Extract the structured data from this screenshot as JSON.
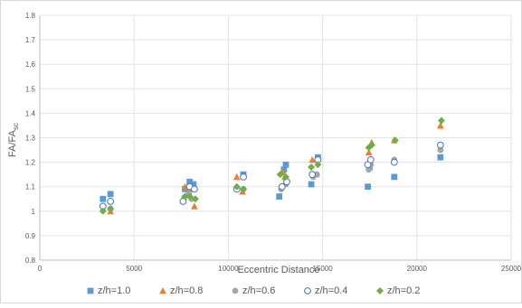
{
  "chart_data": {
    "type": "scatter",
    "xlabel": "Eccentric Distance",
    "ylabel": "FA/FA",
    "ylabel_sub": "sc",
    "xlim": [
      0,
      25000
    ],
    "ylim": [
      0.8,
      1.8
    ],
    "xticks": [
      "0",
      "5000",
      "10000",
      "15000",
      "20000",
      "25000"
    ],
    "yticks": [
      "0.8",
      "0.9",
      "1",
      "1.1",
      "1.2",
      "1.3",
      "1.4",
      "1.5",
      "1.6",
      "1.7",
      "1.8"
    ],
    "grid": true,
    "legend_position": "bottom",
    "series": [
      {
        "name": "z/h=1.0",
        "marker": "square",
        "color": "#5b9bd5",
        "points": [
          [
            3350,
            1.05
          ],
          [
            3750,
            1.07
          ],
          [
            7700,
            1.09
          ],
          [
            7950,
            1.12
          ],
          [
            8150,
            1.11
          ],
          [
            10800,
            1.15
          ],
          [
            12700,
            1.06
          ],
          [
            12950,
            1.17
          ],
          [
            13050,
            1.19
          ],
          [
            14400,
            1.11
          ],
          [
            14750,
            1.22
          ],
          [
            17400,
            1.1
          ],
          [
            17500,
            1.18
          ],
          [
            18800,
            1.14
          ],
          [
            21250,
            1.22
          ]
        ]
      },
      {
        "name": "z/h=0.8",
        "marker": "triangle",
        "color": "#ed7d31",
        "points": [
          [
            3350,
            1.01
          ],
          [
            3750,
            1.0
          ],
          [
            7700,
            1.1
          ],
          [
            7950,
            1.09
          ],
          [
            8200,
            1.02
          ],
          [
            10450,
            1.14
          ],
          [
            10750,
            1.08
          ],
          [
            12900,
            1.16
          ],
          [
            13000,
            1.14
          ],
          [
            14450,
            1.21
          ],
          [
            14650,
            1.15
          ],
          [
            17450,
            1.24
          ],
          [
            17600,
            1.28
          ],
          [
            18800,
            1.29
          ],
          [
            21250,
            1.35
          ]
        ]
      },
      {
        "name": "z/h=0.6",
        "marker": "circle",
        "color": "#a5a5a5",
        "points": [
          [
            3350,
            1.02
          ],
          [
            3750,
            1.01
          ],
          [
            7650,
            1.05
          ],
          [
            7900,
            1.07
          ],
          [
            8050,
            1.05
          ],
          [
            10450,
            1.09
          ],
          [
            10800,
            1.09
          ],
          [
            12800,
            1.09
          ],
          [
            13050,
            1.11
          ],
          [
            14500,
            1.14
          ],
          [
            14700,
            1.15
          ],
          [
            17450,
            1.17
          ],
          [
            17550,
            1.19
          ],
          [
            18800,
            1.21
          ],
          [
            21250,
            1.25
          ]
        ]
      },
      {
        "name": "z/h=0.4",
        "marker": "circle-open",
        "color": "#4472c4",
        "points": [
          [
            3350,
            1.02
          ],
          [
            3750,
            1.04
          ],
          [
            7600,
            1.04
          ],
          [
            7950,
            1.1
          ],
          [
            8200,
            1.09
          ],
          [
            10450,
            1.09
          ],
          [
            10800,
            1.14
          ],
          [
            12850,
            1.1
          ],
          [
            13100,
            1.12
          ],
          [
            14450,
            1.15
          ],
          [
            14750,
            1.21
          ],
          [
            17400,
            1.19
          ],
          [
            17550,
            1.21
          ],
          [
            18800,
            1.2
          ],
          [
            21250,
            1.27
          ]
        ]
      },
      {
        "name": "z/h=0.2",
        "marker": "diamond",
        "color": "#70ad47",
        "points": [
          [
            3350,
            1.0
          ],
          [
            3750,
            1.01
          ],
          [
            7700,
            1.06
          ],
          [
            7950,
            1.06
          ],
          [
            8250,
            1.05
          ],
          [
            10450,
            1.1
          ],
          [
            10800,
            1.09
          ],
          [
            12750,
            1.15
          ],
          [
            13050,
            1.14
          ],
          [
            14400,
            1.18
          ],
          [
            14750,
            1.19
          ],
          [
            17450,
            1.26
          ],
          [
            17600,
            1.27
          ],
          [
            18850,
            1.29
          ],
          [
            21300,
            1.37
          ]
        ]
      }
    ]
  }
}
